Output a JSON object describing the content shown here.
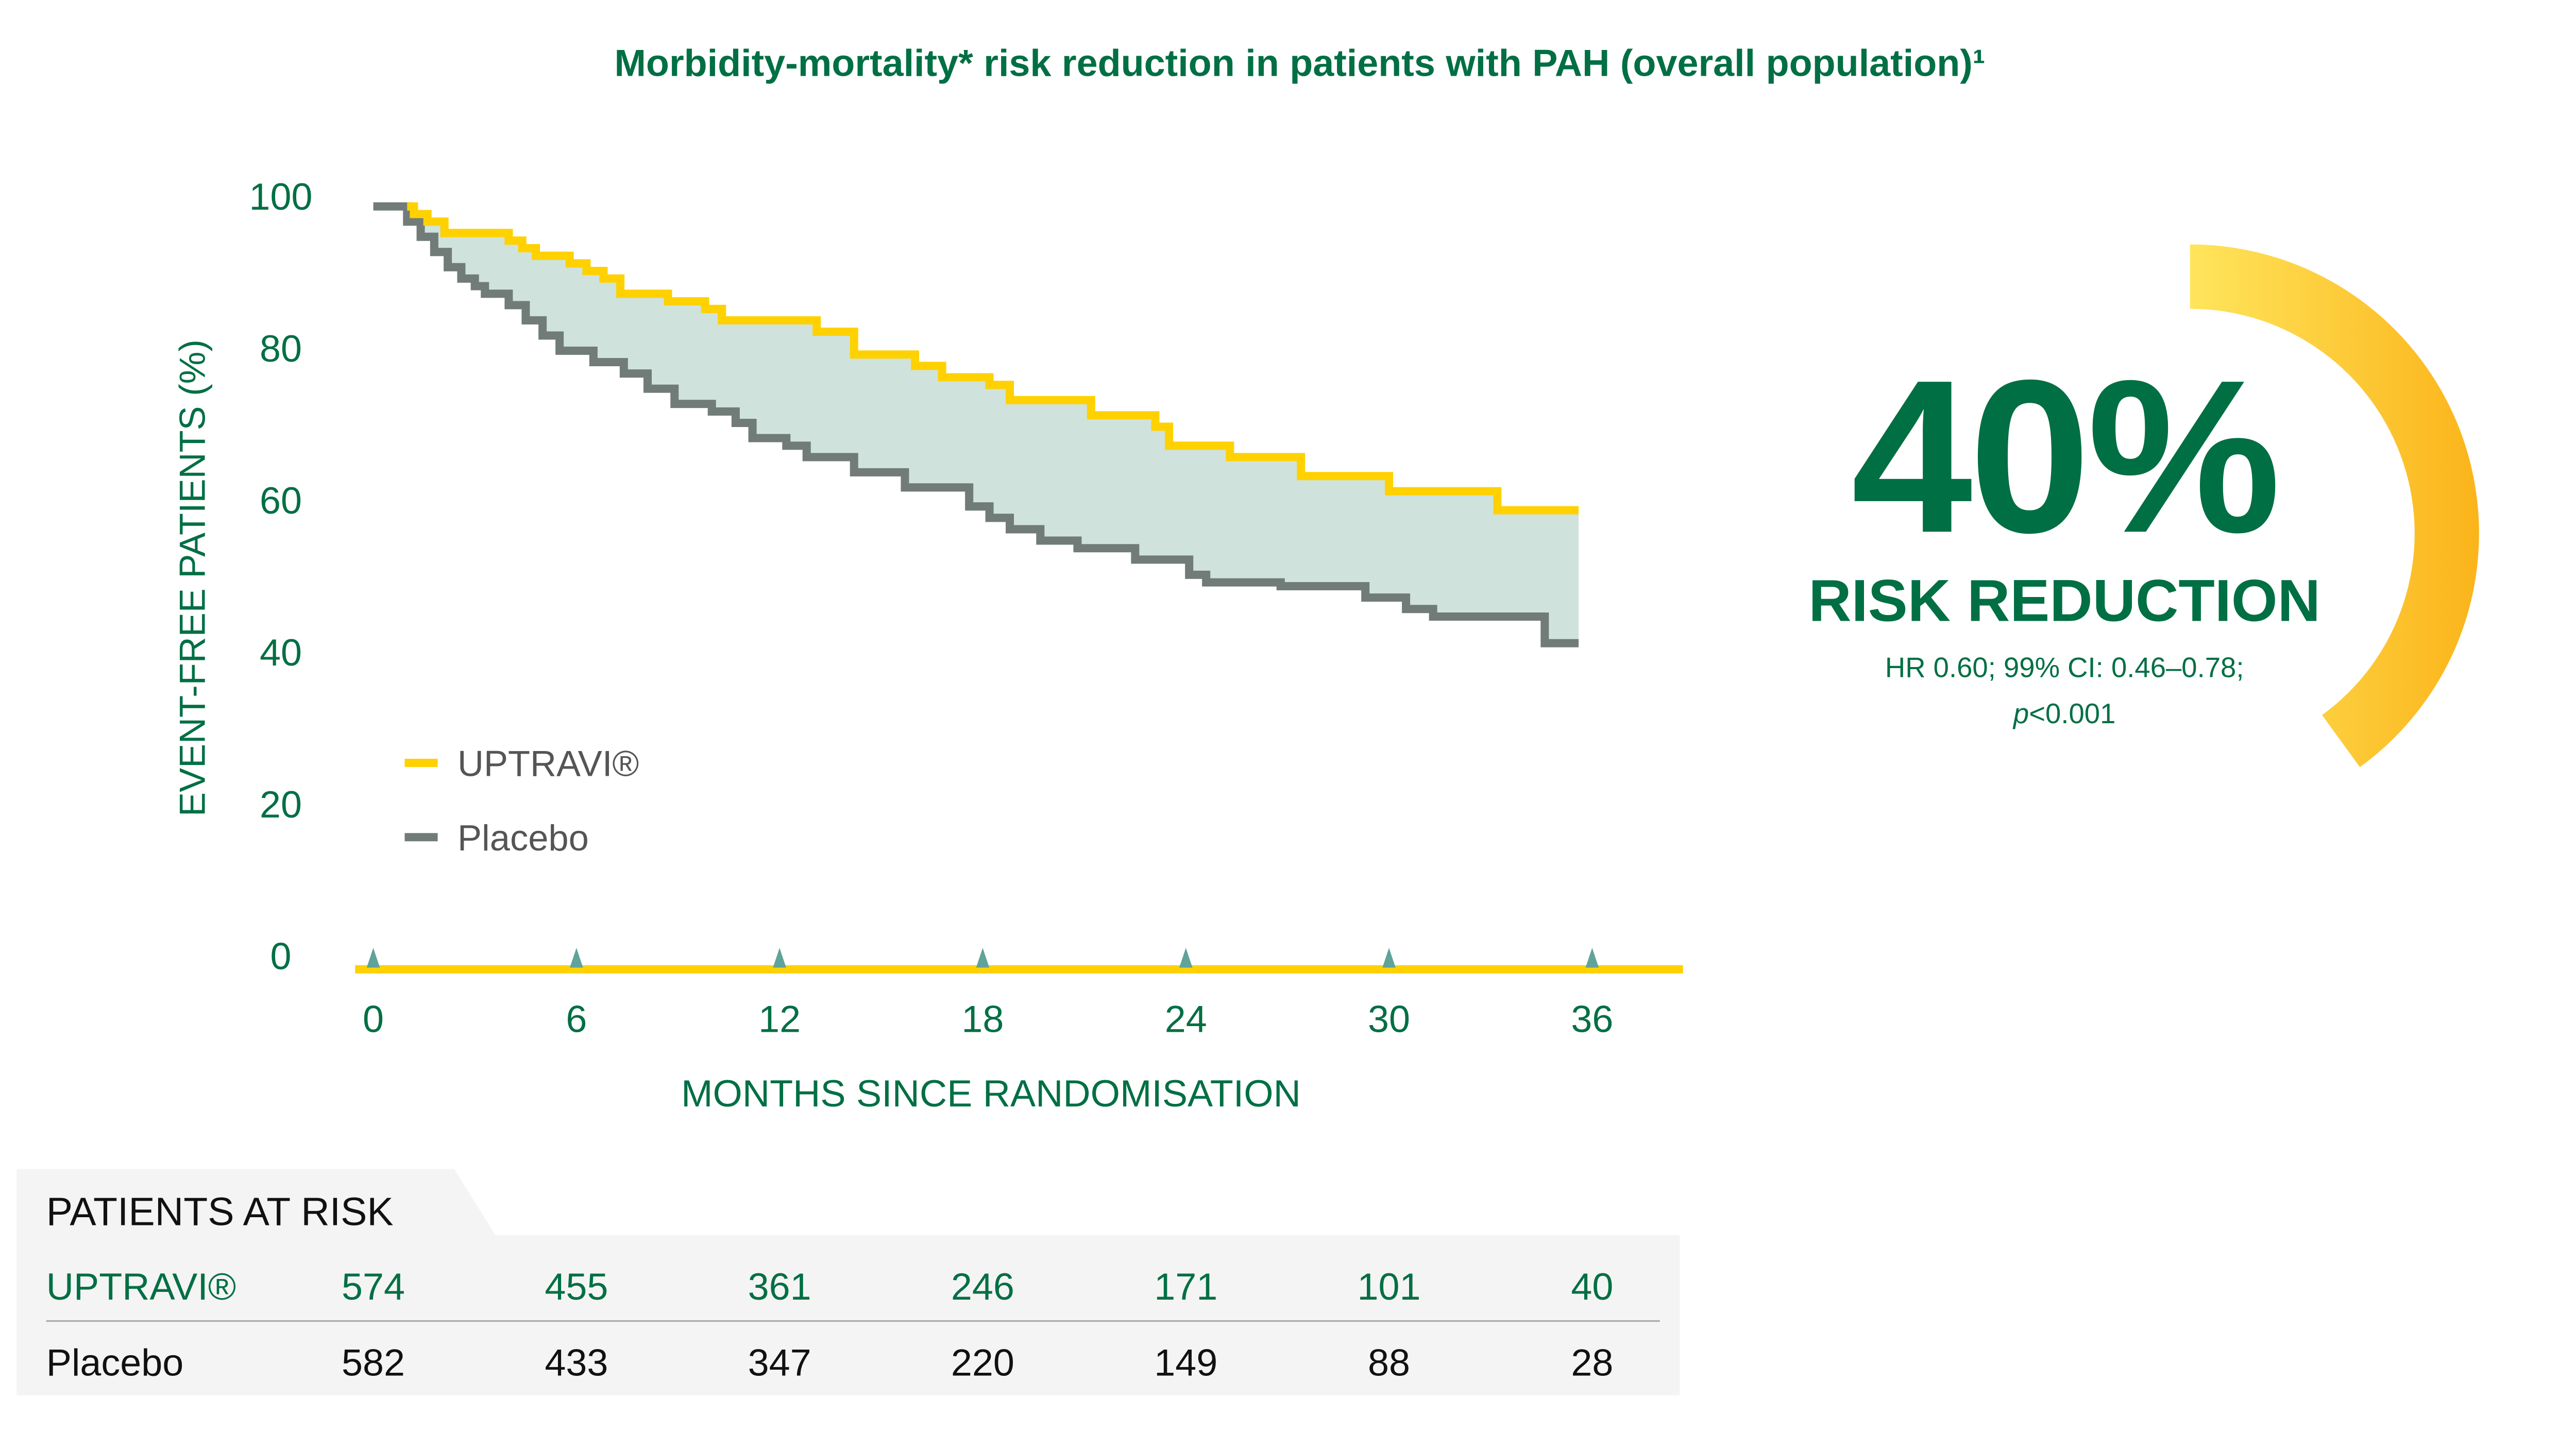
{
  "colors": {
    "green": "#006f44",
    "uptravi": "#ffd100",
    "placebo": "#717c78",
    "fill": "#cfe3dc",
    "panel": "#f4f4f4"
  },
  "chart_data": {
    "type": "line",
    "title": "Morbidity-mortality* risk reduction in patients with PAH (overall population)¹",
    "xlabel": "MONTHS SINCE RANDOMISATION",
    "ylabel": "EVENT-FREE PATIENTS (%)",
    "xlim": [
      0,
      36
    ],
    "ylim": [
      0,
      100
    ],
    "xticks": [
      "0",
      "6",
      "12",
      "18",
      "24",
      "30",
      "36"
    ],
    "yticks": [
      "100",
      "80",
      "60",
      "40",
      "20",
      "0"
    ],
    "legend": {
      "placement": "lower-left",
      "entries": [
        "UPTRAVI®",
        "Placebo"
      ]
    },
    "step": true,
    "series": [
      {
        "name": "UPTRAVI®",
        "points": [
          [
            1.0,
            100
          ],
          [
            1.2,
            99
          ],
          [
            1.6,
            98
          ],
          [
            2.1,
            96.5
          ],
          [
            4.0,
            95.5
          ],
          [
            4.4,
            94.5
          ],
          [
            4.8,
            93.5
          ],
          [
            5.8,
            92.5
          ],
          [
            6.3,
            91.5
          ],
          [
            6.8,
            90.5
          ],
          [
            7.3,
            88.5
          ],
          [
            8.7,
            87.5
          ],
          [
            9.8,
            86.5
          ],
          [
            10.3,
            85
          ],
          [
            13.1,
            83.5
          ],
          [
            14.2,
            80.5
          ],
          [
            16.0,
            79
          ],
          [
            16.8,
            77.5
          ],
          [
            18.2,
            76.5
          ],
          [
            18.8,
            74.5
          ],
          [
            21.2,
            72.5
          ],
          [
            23.1,
            71
          ],
          [
            23.5,
            68.5
          ],
          [
            25.3,
            67
          ],
          [
            27.4,
            64.5
          ],
          [
            30.0,
            62.5
          ],
          [
            33.2,
            60
          ],
          [
            35.6,
            60
          ]
        ]
      },
      {
        "name": "Placebo",
        "points": [
          [
            0,
            100
          ],
          [
            1.0,
            98
          ],
          [
            1.4,
            96
          ],
          [
            1.8,
            94
          ],
          [
            2.2,
            92
          ],
          [
            2.6,
            90.5
          ],
          [
            3.0,
            89.5
          ],
          [
            3.3,
            88.5
          ],
          [
            4.0,
            87
          ],
          [
            4.5,
            85
          ],
          [
            5.0,
            83
          ],
          [
            5.5,
            81
          ],
          [
            6.5,
            79.5
          ],
          [
            7.4,
            78
          ],
          [
            8.1,
            76
          ],
          [
            8.9,
            74
          ],
          [
            10.0,
            73
          ],
          [
            10.7,
            71.5
          ],
          [
            11.2,
            69.5
          ],
          [
            12.2,
            68.5
          ],
          [
            12.8,
            67
          ],
          [
            14.2,
            65
          ],
          [
            15.7,
            63
          ],
          [
            17.6,
            60.5
          ],
          [
            18.2,
            59
          ],
          [
            18.8,
            57.5
          ],
          [
            19.7,
            56
          ],
          [
            20.8,
            55
          ],
          [
            22.5,
            53.5
          ],
          [
            24.1,
            51.5
          ],
          [
            24.6,
            50.5
          ],
          [
            26.8,
            50
          ],
          [
            29.3,
            48.5
          ],
          [
            30.5,
            47
          ],
          [
            31.3,
            46
          ],
          [
            34.6,
            42.5
          ],
          [
            35.6,
            42.5
          ]
        ]
      }
    ]
  },
  "result": {
    "percent": "40%",
    "label": "RISK REDUCTION",
    "stats": "HR 0.60; 99% CI: 0.46–0.78;",
    "p_italic": "p",
    "p_value": "<0.001",
    "arc_fraction": 0.4
  },
  "risk_table": {
    "title": "PATIENTS AT RISK",
    "rows": [
      {
        "label": "UPTRAVI®",
        "values": [
          "574",
          "455",
          "361",
          "246",
          "171",
          "101",
          "40"
        ]
      },
      {
        "label": "Placebo",
        "values": [
          "582",
          "433",
          "347",
          "220",
          "149",
          "88",
          "28"
        ]
      }
    ]
  }
}
